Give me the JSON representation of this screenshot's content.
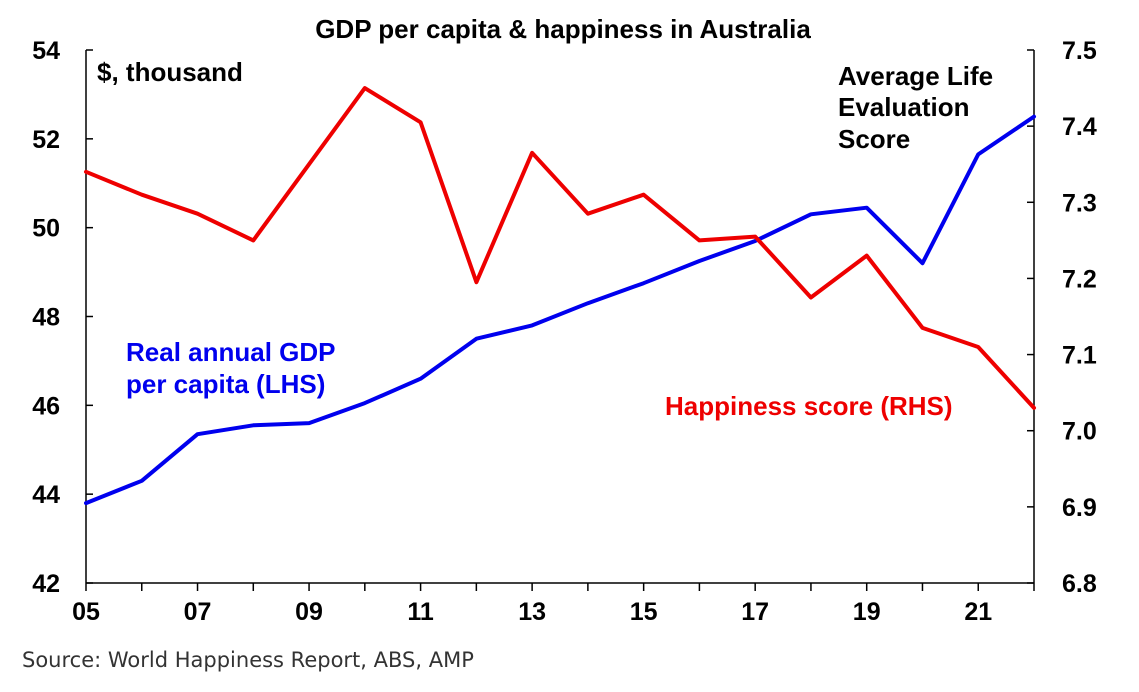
{
  "chart_data": {
    "type": "line",
    "title": "GDP per capita & happiness in Australia",
    "x": [
      2005,
      2006,
      2007,
      2008,
      2009,
      2010,
      2011,
      2012,
      2013,
      2014,
      2015,
      2016,
      2017,
      2018,
      2019,
      2020,
      2021,
      2022
    ],
    "x_tick_values": [
      2005,
      2007,
      2009,
      2011,
      2013,
      2015,
      2017,
      2019,
      2021
    ],
    "x_tick_labels": [
      "05",
      "07",
      "09",
      "11",
      "13",
      "15",
      "17",
      "19",
      "21"
    ],
    "xlim": [
      2005,
      2022
    ],
    "y_left": {
      "label": "$, thousand",
      "ylim": [
        42,
        54
      ],
      "ticks": [
        42,
        44,
        46,
        48,
        50,
        52,
        54
      ]
    },
    "y_right": {
      "label": "Average Life Evaluation Score",
      "label_lines": [
        "Average Life",
        "Evaluation",
        "Score"
      ],
      "ylim": [
        6.8,
        7.5
      ],
      "ticks": [
        "6.8",
        "6.9",
        "7.0",
        "7.1",
        "7.2",
        "7.3",
        "7.4",
        "7.5"
      ]
    },
    "series": [
      {
        "name": "Real annual GDP per capita (LHS)",
        "label_lines": [
          "Real annual GDP",
          "per capita (LHS)"
        ],
        "axis": "left",
        "color": "#0000ee",
        "values": [
          43.8,
          44.3,
          45.35,
          45.55,
          45.6,
          46.05,
          46.6,
          47.5,
          47.8,
          48.3,
          48.75,
          49.25,
          49.7,
          50.3,
          50.45,
          49.2,
          51.65,
          52.5
        ]
      },
      {
        "name": "Happiness score (RHS)",
        "label_lines": [
          "Happiness score (RHS)"
        ],
        "axis": "right",
        "color": "#ee0000",
        "values": [
          7.34,
          7.31,
          7.285,
          7.25,
          7.35,
          7.45,
          7.405,
          7.195,
          7.365,
          7.285,
          7.31,
          7.25,
          7.255,
          7.175,
          7.23,
          7.135,
          7.11,
          7.03
        ]
      }
    ],
    "grid": false
  },
  "source": "Source: World Happiness Report, ABS, AMP"
}
